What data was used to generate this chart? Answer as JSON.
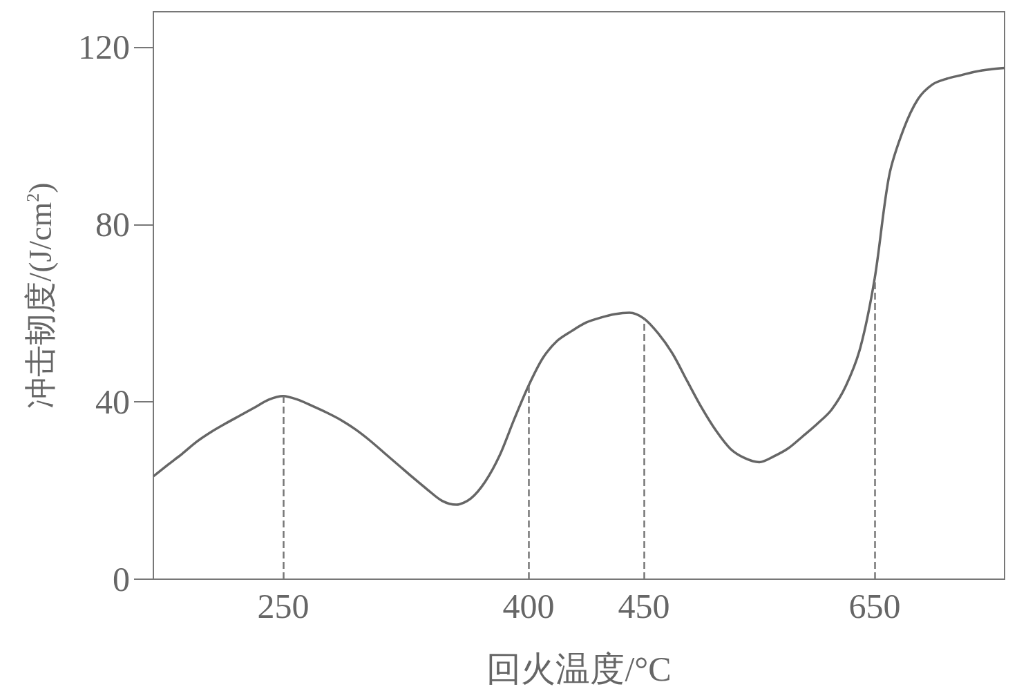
{
  "chart_data": {
    "type": "line",
    "xlabel": "回火温度/°C",
    "ylabel": "冲击韧度/(J/cm$^{2}$)",
    "categories": [
      null,
      null,
      null,
      null,
      null,
      null,
      null,
      null,
      null,
      "250",
      null,
      null,
      null,
      null,
      null,
      null,
      null,
      null,
      null,
      null,
      null,
      null,
      null,
      null,
      null,
      null,
      "400",
      null,
      null,
      null,
      null,
      null,
      null,
      null,
      "450",
      null,
      null,
      null,
      null,
      null,
      null,
      null,
      null,
      null,
      null,
      null,
      null,
      null,
      null,
      null,
      "650",
      null,
      null,
      null,
      null,
      null,
      null,
      null,
      null,
      null
    ],
    "series": [
      {
        "color": "#666666",
        "values": [
          23.2,
          25.8,
          28.3,
          31.0,
          33.2,
          35.1,
          36.9,
          38.7,
          40.5,
          41.3,
          40.5,
          39.1,
          37.6,
          35.9,
          33.8,
          31.3,
          28.5,
          25.7,
          22.9,
          20.2,
          17.7,
          16.8,
          18.2,
          22.0,
          27.9,
          36.0,
          43.6,
          49.9,
          53.8,
          56.0,
          57.9,
          59.0,
          59.8,
          60.1,
          58.8,
          55.4,
          50.8,
          44.7,
          38.7,
          33.5,
          29.4,
          27.3,
          26.4,
          27.7,
          29.5,
          32.2,
          35.0,
          38.2,
          43.6,
          52.2,
          67.9,
          91.0,
          101.5,
          108.3,
          111.6,
          112.9,
          113.7,
          114.5,
          115.0,
          115.3
        ]
      }
    ],
    "ylim": [
      0,
      128
    ],
    "yticks": [
      0,
      40,
      80,
      120
    ],
    "grid": false,
    "marker": "none",
    "line_style": "solid",
    "ref_lines": [
      {
        "axis": "x",
        "value": "250",
        "color": "#777777",
        "line_style": "dashed"
      },
      {
        "axis": "x",
        "value": "400",
        "color": "#777777",
        "line_style": "dashed"
      },
      {
        "axis": "x",
        "value": "450",
        "color": "#777777",
        "line_style": "dashed"
      },
      {
        "axis": "x",
        "value": "650",
        "color": "#777777",
        "line_style": "dashed"
      }
    ]
  }
}
